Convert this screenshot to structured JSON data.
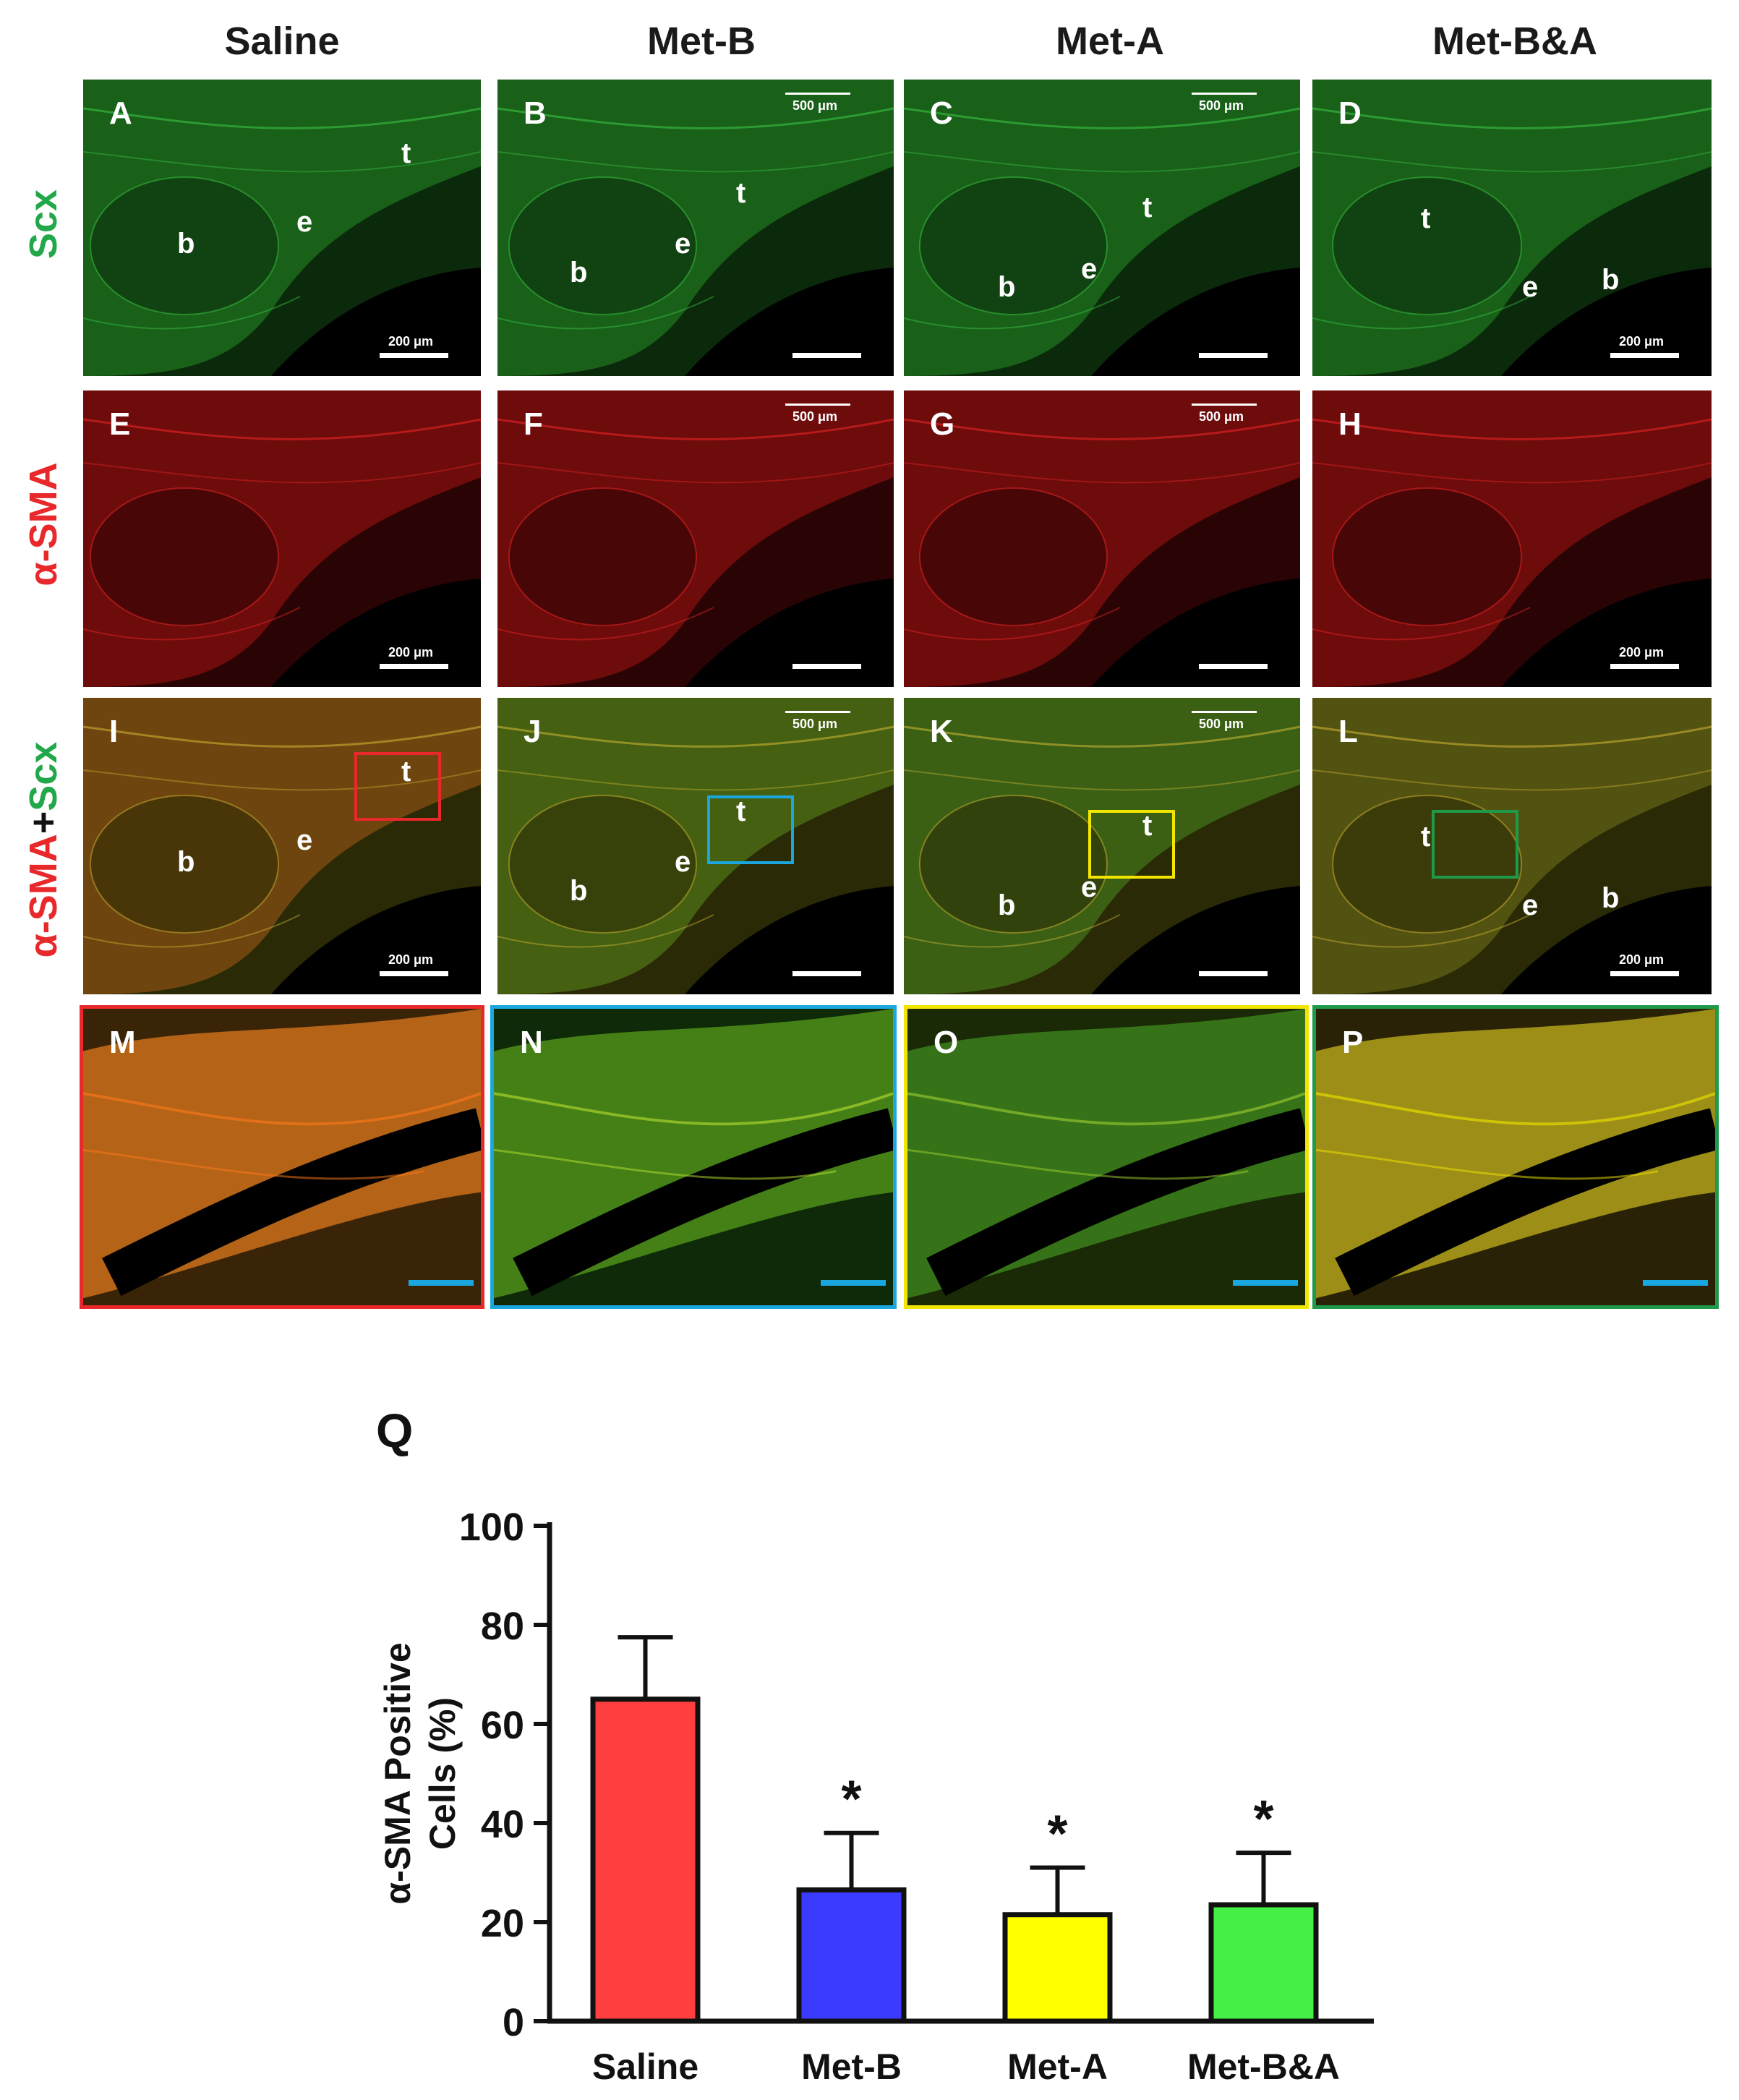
{
  "columns": [
    "Saline",
    "Met-B",
    "Met-A",
    "Met-B&A"
  ],
  "rows": [
    {
      "label": "Scx",
      "color": "#22a84a"
    },
    {
      "label": "α-SMA",
      "color": "#e8282a"
    },
    {
      "label_parts": [
        "α-SMA",
        "+",
        "Scx"
      ],
      "colors": [
        "#e8282a",
        "#111111",
        "#22a84a"
      ]
    }
  ],
  "panel_letters": [
    "A",
    "B",
    "C",
    "D",
    "E",
    "F",
    "G",
    "H",
    "I",
    "J",
    "K",
    "L",
    "M",
    "N",
    "O",
    "P"
  ],
  "tissue_labels": {
    "bone": "b",
    "enthesis": "e",
    "tendon": "t"
  },
  "scale_bar_text": [
    "500 μm",
    "200 μm"
  ],
  "roi_colors": [
    "#e8282a",
    "#1aa7e0",
    "#f2e600",
    "#1f9a4a"
  ],
  "zoom_border_colors": [
    "#e8282a",
    "#1aa7e0",
    "#f2e600",
    "#1f9a4a"
  ],
  "chart_label": "Q",
  "chart_data": {
    "type": "bar",
    "categories": [
      "Saline",
      "Met-B",
      "Met-A",
      "Met-B&A"
    ],
    "values": [
      65,
      26.5,
      21.5,
      23.5
    ],
    "errors": [
      12.5,
      11.5,
      9.5,
      10.5
    ],
    "significance": [
      "",
      "*",
      "*",
      "*"
    ],
    "colors": [
      "#ff3f3f",
      "#3b3bff",
      "#ffff00",
      "#44f044"
    ],
    "ylabel_lines": [
      "α-SMA Positive",
      "Cells (%)"
    ],
    "ylim": [
      0,
      100
    ],
    "yticks": [
      0,
      20,
      40,
      60,
      80,
      100
    ]
  }
}
